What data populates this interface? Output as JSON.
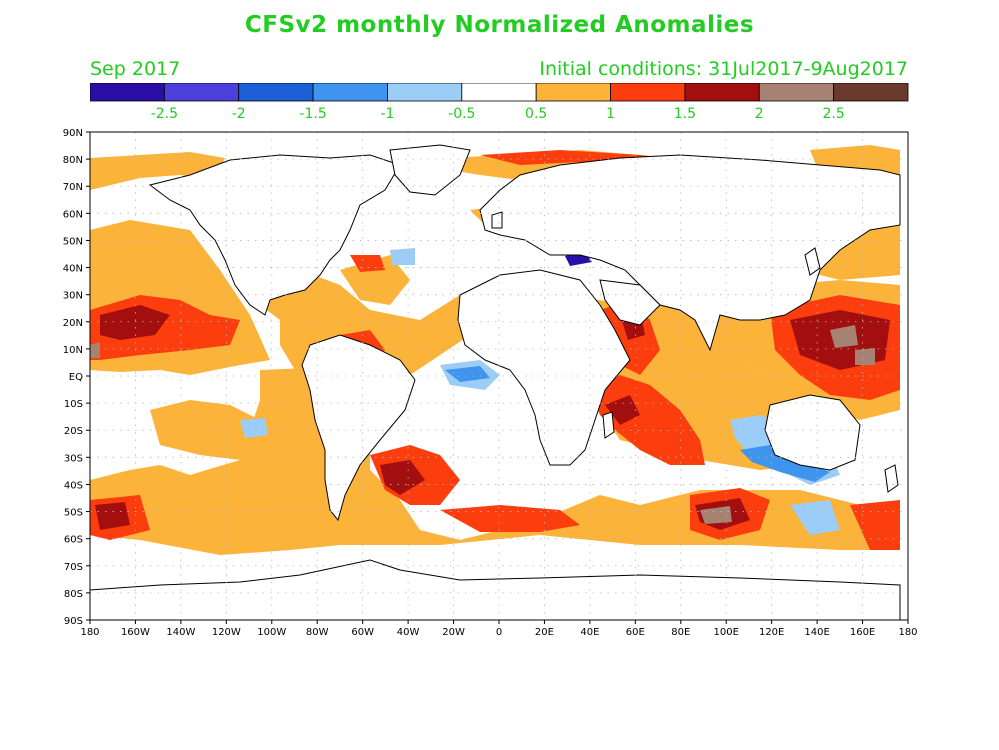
{
  "title": "CFSv2 monthly Normalized Anomalies",
  "period": "Sep 2017",
  "initial_conditions": "Initial conditions: 31Jul2017-9Aug2017",
  "legend": {
    "colors": [
      "#2a0ea8",
      "#4d3fdc",
      "#1d5fd6",
      "#3f94ee",
      "#9ccdf6",
      "#ffffff",
      "#fbb33a",
      "#fc3d0e",
      "#a30e0e",
      "#a68273",
      "#6a3a2c"
    ],
    "labels": [
      "-2.5",
      "-2",
      "-1.5",
      "-1",
      "-0.5",
      "0.5",
      "1",
      "1.5",
      "2",
      "2.5"
    ]
  },
  "axes": {
    "lat_labels": [
      "90N",
      "80N",
      "70N",
      "60N",
      "50N",
      "40N",
      "30N",
      "20N",
      "10N",
      "EQ",
      "10S",
      "20S",
      "30S",
      "40S",
      "50S",
      "60S",
      "70S",
      "80S",
      "90S"
    ],
    "lon_labels": [
      "180",
      "160W",
      "140W",
      "120W",
      "100W",
      "80W",
      "60W",
      "40W",
      "20W",
      "0",
      "20E",
      "40E",
      "60E",
      "80E",
      "100E",
      "120E",
      "140E",
      "160E",
      "180"
    ]
  },
  "colors": {
    "text": "#22cc22",
    "frame": "#000000",
    "grid": "#b8b8b8"
  }
}
